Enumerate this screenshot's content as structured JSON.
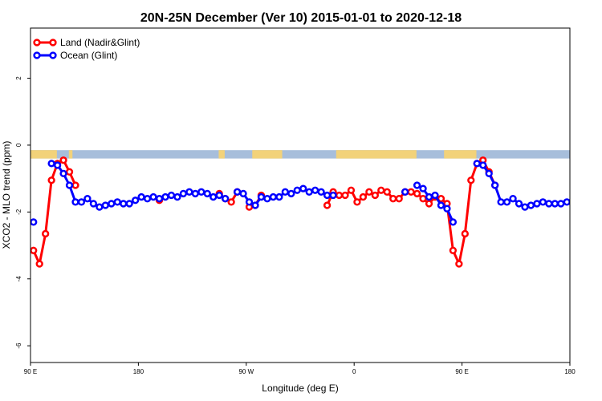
{
  "chart_data": {
    "type": "line",
    "title": "20N-25N December (Ver 10)   2015-01-01 to 2020-12-18",
    "xlabel": "Longitude (deg E)",
    "ylabel": "XCO2 - MLO trend (ppm)",
    "xlim": [
      90,
      540
    ],
    "ylim": [
      -6.5,
      3.5
    ],
    "x_ticks": [
      {
        "value": 90,
        "label": "90 E"
      },
      {
        "value": 180,
        "label": "180"
      },
      {
        "value": 270,
        "label": "90 W"
      },
      {
        "value": 360,
        "label": "0"
      },
      {
        "value": 450,
        "label": "90 E"
      },
      {
        "value": 540,
        "label": "180"
      }
    ],
    "y_ticks": [
      {
        "value": 2,
        "label": "2"
      },
      {
        "value": 0,
        "label": "0"
      },
      {
        "value": -2,
        "label": "-2"
      },
      {
        "value": -4,
        "label": "-4"
      },
      {
        "value": -6,
        "label": "-6"
      }
    ],
    "map_band": {
      "ymin": -0.4,
      "ymax": -0.15,
      "ocean_color": "#a7bedb",
      "land_color": "#f2d27a"
    },
    "legend": {
      "position": "top-left"
    },
    "series": [
      {
        "name": "Land (Nadir&Glint)",
        "color": "#ff0000",
        "x": [
          92.5,
          97.5,
          102.5,
          107.5,
          112.5,
          117.5,
          122.5,
          127.5,
          197.5,
          247.5,
          252.5,
          257.5,
          262.5,
          272.5,
          277.5,
          282.5,
          337.5,
          342.5,
          347.5,
          352.5,
          357.5,
          362.5,
          367.5,
          372.5,
          377.5,
          382.5,
          387.5,
          392.5,
          397.5,
          402.5,
          407.5,
          412.5,
          417.5,
          422.5,
          427.5,
          432.5,
          437.5,
          442.5,
          447.5,
          452.5,
          457.5,
          462.5,
          467.5,
          472.5,
          477.5
        ],
        "values": [
          -3.15,
          -3.55,
          -2.65,
          -1.05,
          -0.55,
          -0.45,
          -0.8,
          -1.2,
          -1.65,
          -1.45,
          -1.6,
          -1.7,
          -1.4,
          -1.85,
          -1.8,
          -1.5,
          -1.8,
          -1.4,
          -1.5,
          -1.5,
          -1.35,
          -1.7,
          -1.55,
          -1.4,
          -1.5,
          -1.35,
          -1.4,
          -1.6,
          -1.6,
          -1.4,
          -1.4,
          -1.45,
          -1.6,
          -1.75,
          -1.55,
          -1.6,
          -1.75,
          -3.15,
          -3.55,
          -2.65,
          -1.05,
          -0.55,
          -0.45,
          -0.8,
          -1.2
        ]
      },
      {
        "name": "Ocean (Glint)",
        "color": "#0000ff",
        "x": [
          92.5,
          107.5,
          112.5,
          117.5,
          122.5,
          127.5,
          132.5,
          137.5,
          142.5,
          147.5,
          152.5,
          157.5,
          162.5,
          167.5,
          172.5,
          177.5,
          182.5,
          187.5,
          192.5,
          197.5,
          202.5,
          207.5,
          212.5,
          217.5,
          222.5,
          227.5,
          232.5,
          237.5,
          242.5,
          247.5,
          252.5,
          262.5,
          267.5,
          272.5,
          277.5,
          282.5,
          287.5,
          292.5,
          297.5,
          302.5,
          307.5,
          312.5,
          317.5,
          322.5,
          327.5,
          332.5,
          337.5,
          342.5,
          402.5,
          412.5,
          417.5,
          422.5,
          427.5,
          432.5,
          437.5,
          442.5,
          462.5,
          467.5,
          472.5,
          477.5,
          482.5,
          487.5,
          492.5,
          497.5,
          502.5,
          507.5,
          512.5,
          517.5,
          522.5,
          527.5,
          532.5,
          537.5
        ],
        "values": [
          -2.3,
          -0.55,
          -0.6,
          -0.85,
          -1.2,
          -1.7,
          -1.7,
          -1.6,
          -1.75,
          -1.85,
          -1.8,
          -1.75,
          -1.7,
          -1.75,
          -1.75,
          -1.65,
          -1.55,
          -1.6,
          -1.55,
          -1.6,
          -1.55,
          -1.5,
          -1.55,
          -1.45,
          -1.4,
          -1.45,
          -1.4,
          -1.45,
          -1.55,
          -1.5,
          -1.6,
          -1.4,
          -1.45,
          -1.7,
          -1.8,
          -1.55,
          -1.6,
          -1.55,
          -1.55,
          -1.4,
          -1.45,
          -1.35,
          -1.3,
          -1.4,
          -1.35,
          -1.4,
          -1.5,
          -1.5,
          -1.4,
          -1.2,
          -1.3,
          -1.55,
          -1.5,
          -1.8,
          -1.9,
          -2.3,
          -0.55,
          -0.6,
          -0.85,
          -1.2,
          -1.7,
          -1.7,
          -1.6,
          -1.75,
          -1.85,
          -1.8,
          -1.75,
          -1.7,
          -1.75,
          -1.75,
          -1.75,
          -1.7
        ]
      }
    ]
  }
}
